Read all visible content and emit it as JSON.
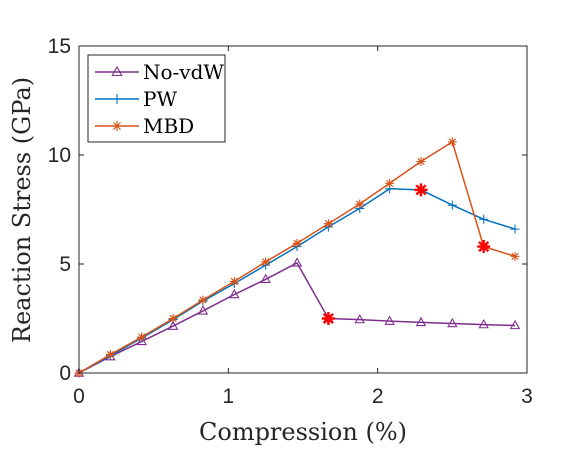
{
  "chart_data": {
    "type": "line",
    "xlabel": "Compression (%)",
    "ylabel": "Reaction Stress (GPa)",
    "xlim": [
      0,
      3
    ],
    "ylim": [
      0,
      15
    ],
    "xticks": [
      0,
      1,
      2,
      3
    ],
    "yticks": [
      0,
      5,
      10,
      15
    ],
    "grid": false,
    "legend_position": "top-left",
    "series": [
      {
        "name": "No-vdW",
        "color": "#7E2F8E",
        "marker": "triangle",
        "x": [
          0,
          0.21,
          0.42,
          0.63,
          0.83,
          1.04,
          1.25,
          1.46,
          1.67,
          1.88,
          2.08,
          2.29,
          2.5,
          2.71,
          2.92
        ],
        "y": [
          0,
          0.75,
          1.45,
          2.15,
          2.85,
          3.6,
          4.3,
          5.05,
          2.5,
          2.45,
          2.38,
          2.32,
          2.27,
          2.22,
          2.18
        ]
      },
      {
        "name": "PW",
        "color": "#0072BD",
        "marker": "plus",
        "x": [
          0,
          0.21,
          0.42,
          0.63,
          0.83,
          1.04,
          1.25,
          1.46,
          1.67,
          1.88,
          2.08,
          2.29,
          2.5,
          2.71,
          2.92
        ],
        "y": [
          0,
          0.8,
          1.6,
          2.45,
          3.3,
          4.1,
          4.95,
          5.8,
          6.7,
          7.55,
          8.45,
          8.4,
          7.7,
          7.05,
          6.6
        ]
      },
      {
        "name": "MBD",
        "color": "#D95319",
        "marker": "asterisk",
        "x": [
          0,
          0.21,
          0.42,
          0.63,
          0.83,
          1.04,
          1.25,
          1.46,
          1.67,
          1.88,
          2.08,
          2.29,
          2.5,
          2.71,
          2.92
        ],
        "y": [
          0,
          0.85,
          1.65,
          2.5,
          3.35,
          4.2,
          5.1,
          5.95,
          6.85,
          7.75,
          8.7,
          9.7,
          10.6,
          5.8,
          5.35
        ]
      }
    ],
    "highlights": {
      "color": "#FF0000",
      "marker": "asterisk",
      "points": [
        {
          "x": 1.67,
          "y": 2.5
        },
        {
          "x": 2.29,
          "y": 8.4
        },
        {
          "x": 2.71,
          "y": 5.8
        }
      ]
    }
  }
}
